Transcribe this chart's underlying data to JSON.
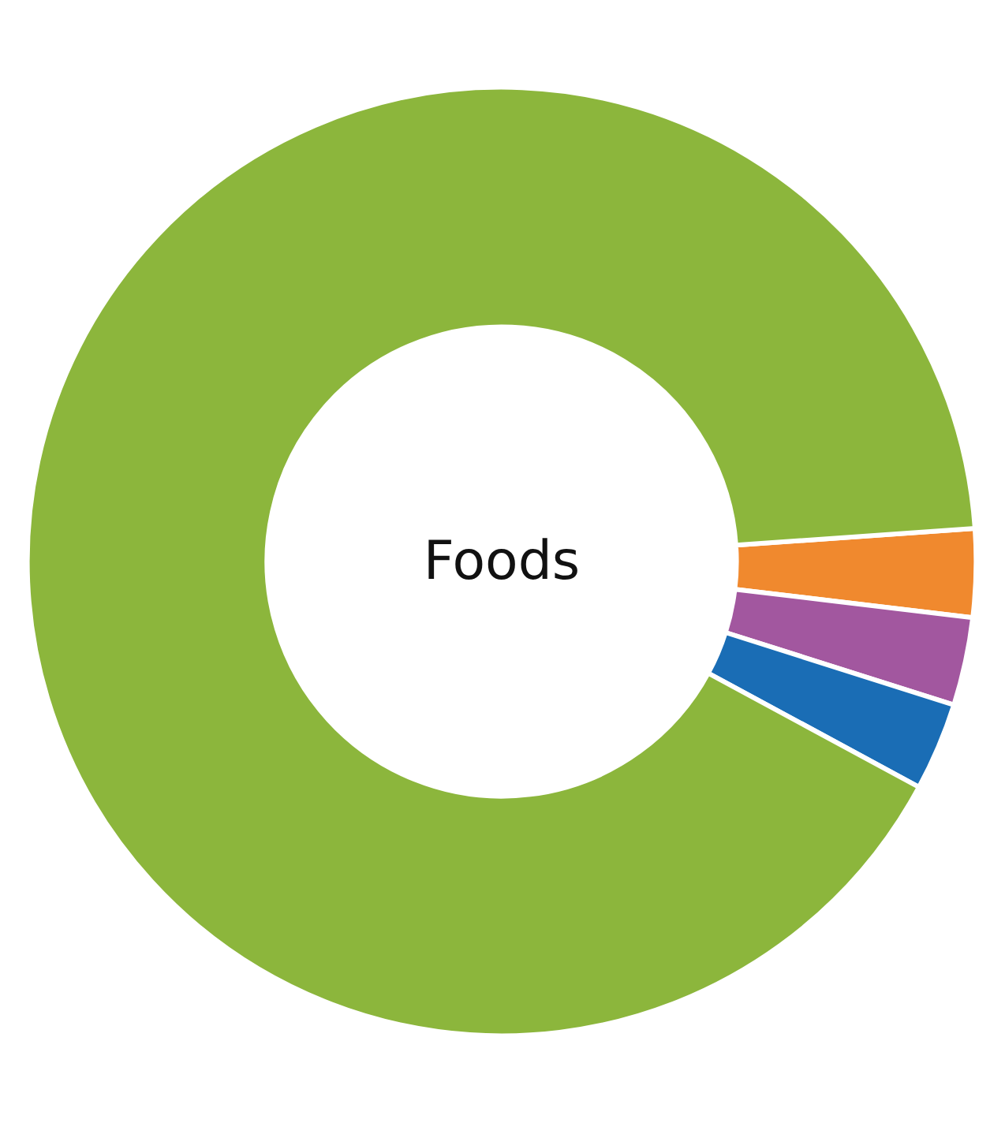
{
  "chart_data": {
    "type": "donut",
    "title": "Foods",
    "categories": [
      null,
      null,
      null,
      null
    ],
    "values": [
      3,
      3,
      3,
      91
    ],
    "colors": [
      "#f0892e",
      "#a2579f",
      "#1a6db5",
      "#8cb63c"
    ]
  }
}
